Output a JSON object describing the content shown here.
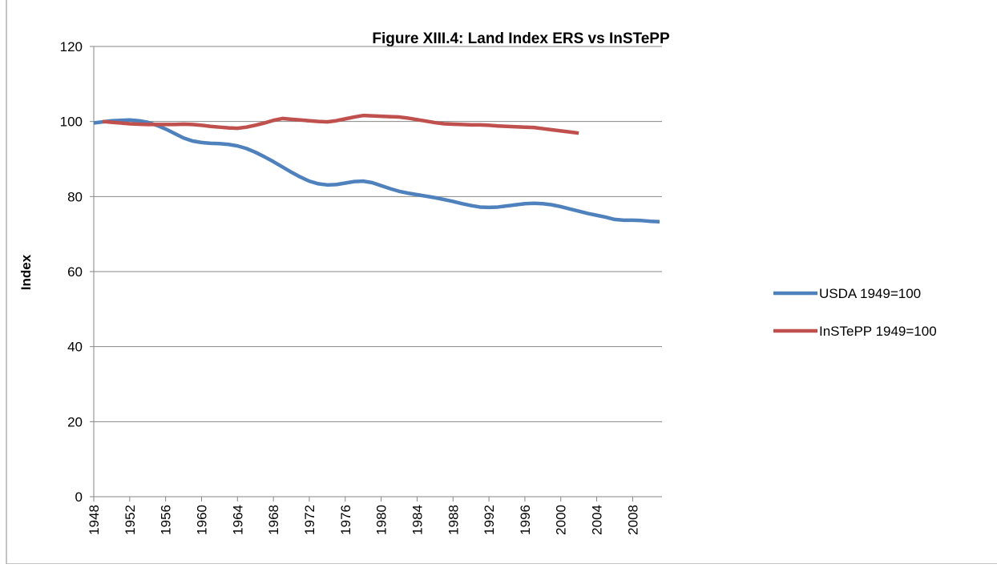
{
  "chart_data": {
    "type": "line",
    "title": "Figure XIII.4: Land Index ERS vs InSTePP",
    "y_label": "Index",
    "x": [
      1948,
      1949,
      1950,
      1951,
      1952,
      1953,
      1954,
      1955,
      1956,
      1957,
      1958,
      1959,
      1960,
      1961,
      1962,
      1963,
      1964,
      1965,
      1966,
      1967,
      1968,
      1969,
      1970,
      1971,
      1972,
      1973,
      1974,
      1975,
      1976,
      1977,
      1978,
      1979,
      1980,
      1981,
      1982,
      1983,
      1984,
      1985,
      1986,
      1987,
      1988,
      1989,
      1990,
      1991,
      1992,
      1993,
      1994,
      1995,
      1996,
      1997,
      1998,
      1999,
      2000,
      2001,
      2002,
      2003,
      2004,
      2005,
      2006,
      2007,
      2008,
      2009,
      2010,
      2011
    ],
    "series": [
      {
        "name": "USDA 1949=100",
        "color": "#4f81bd",
        "values": [
          99.6,
          99.9,
          100.2,
          100.3,
          100.4,
          100.2,
          99.8,
          99.0,
          98.0,
          96.8,
          95.6,
          94.8,
          94.4,
          94.2,
          94.1,
          93.9,
          93.5,
          92.8,
          91.8,
          90.6,
          89.3,
          87.9,
          86.5,
          85.2,
          84.1,
          83.4,
          83.1,
          83.2,
          83.6,
          84.0,
          84.1,
          83.7,
          82.9,
          82.1,
          81.4,
          80.9,
          80.5,
          80.1,
          79.7,
          79.2,
          78.7,
          78.1,
          77.6,
          77.2,
          77.1,
          77.2,
          77.5,
          77.8,
          78.1,
          78.2,
          78.1,
          77.8,
          77.3,
          76.7,
          76.1,
          75.5,
          75.0,
          74.5,
          73.9,
          73.7,
          73.7,
          73.6,
          73.4,
          73.3
        ]
      },
      {
        "name": "InSTePP 1949=100",
        "color": "#c0504d",
        "values": [
          null,
          100.0,
          99.8,
          99.6,
          99.4,
          99.3,
          99.2,
          99.2,
          99.2,
          99.2,
          99.3,
          99.2,
          99.0,
          98.7,
          98.5,
          98.3,
          98.2,
          98.5,
          99.0,
          99.6,
          100.3,
          100.8,
          100.6,
          100.4,
          100.2,
          100.0,
          99.9,
          100.2,
          100.7,
          101.2,
          101.6,
          101.5,
          101.4,
          101.3,
          101.2,
          100.9,
          100.5,
          100.1,
          99.7,
          99.4,
          99.3,
          99.2,
          99.1,
          99.1,
          99.0,
          98.8,
          98.7,
          98.6,
          98.5,
          98.4,
          98.1,
          97.8,
          97.5,
          97.2,
          96.9,
          null,
          null,
          null,
          null,
          null,
          null,
          null,
          null,
          null
        ]
      }
    ],
    "xlim": [
      1948,
      2011
    ],
    "xticks": [
      1948,
      1952,
      1956,
      1960,
      1964,
      1968,
      1972,
      1976,
      1980,
      1984,
      1988,
      1992,
      1996,
      2000,
      2004,
      2008
    ],
    "ylim": [
      0,
      120
    ],
    "yticks": [
      0,
      20,
      40,
      60,
      80,
      100,
      120
    ],
    "grid": true,
    "legend": "right"
  }
}
